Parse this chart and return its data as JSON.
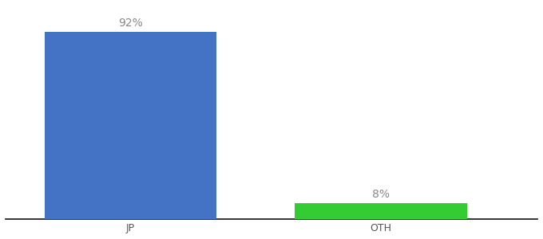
{
  "categories": [
    "JP",
    "OTH"
  ],
  "values": [
    92,
    8
  ],
  "bar_colors": [
    "#4472c4",
    "#33cc33"
  ],
  "value_labels": [
    "92%",
    "8%"
  ],
  "background_color": "#ffffff",
  "label_color": "#888888",
  "label_fontsize": 10,
  "tick_fontsize": 9,
  "ylim": [
    0,
    105
  ],
  "bar_width": 0.55,
  "xlim": [
    -0.1,
    1.6
  ],
  "bar_positions": [
    0.3,
    1.1
  ]
}
